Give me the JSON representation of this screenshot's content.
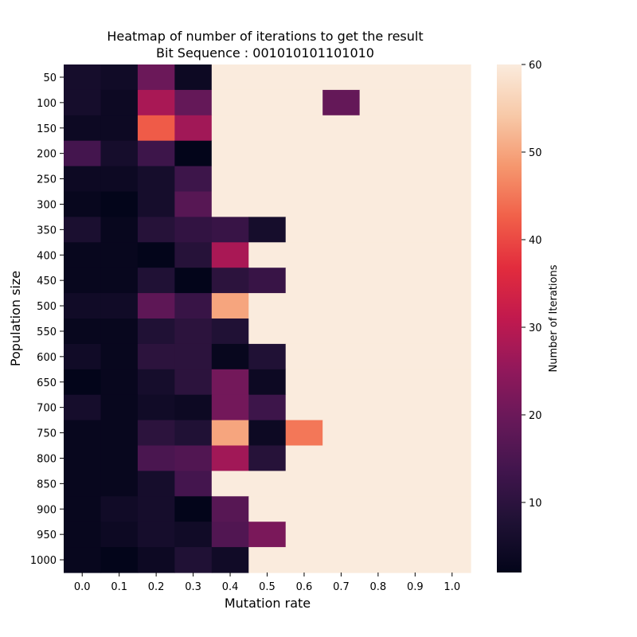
{
  "chart_data": {
    "type": "heatmap",
    "title_line1": "Heatmap of number of iterations to get the result",
    "title_line2": "Bit Sequence : 001010101101010",
    "xlabel": "Mutation rate",
    "ylabel": "Population size",
    "colorbar_label": "Number of Iterations",
    "x_categories": [
      "0.0",
      "0.1",
      "0.2",
      "0.3",
      "0.4",
      "0.5",
      "0.6",
      "0.7",
      "0.8",
      "0.9",
      "1.0"
    ],
    "y_categories": [
      "50",
      "100",
      "150",
      "200",
      "250",
      "300",
      "350",
      "400",
      "450",
      "500",
      "550",
      "600",
      "650",
      "700",
      "750",
      "800",
      "850",
      "900",
      "950",
      "1000"
    ],
    "color_range": [
      2,
      60
    ],
    "colorbar_ticks": [
      "10",
      "20",
      "30",
      "40",
      "50",
      "60"
    ],
    "colormap": "rocket",
    "values": [
      [
        6,
        5,
        20,
        4,
        60,
        60,
        60,
        60,
        60,
        60,
        60
      ],
      [
        6,
        4,
        28,
        19,
        60,
        60,
        60,
        19,
        60,
        60,
        60
      ],
      [
        4,
        4,
        42,
        27,
        60,
        60,
        60,
        60,
        60,
        60,
        60
      ],
      [
        14,
        6,
        13,
        2,
        60,
        60,
        60,
        60,
        60,
        60,
        60
      ],
      [
        4,
        4,
        6,
        13,
        60,
        60,
        60,
        60,
        60,
        60,
        60
      ],
      [
        3,
        2,
        6,
        17,
        60,
        60,
        60,
        60,
        60,
        60,
        60
      ],
      [
        7,
        3,
        9,
        11,
        12,
        6,
        60,
        60,
        60,
        60,
        60
      ],
      [
        3,
        3,
        2,
        9,
        28,
        60,
        60,
        60,
        60,
        60,
        60
      ],
      [
        3,
        3,
        8,
        2,
        10,
        12,
        60,
        60,
        60,
        60,
        60
      ],
      [
        5,
        5,
        18,
        12,
        50,
        60,
        60,
        60,
        60,
        60,
        60
      ],
      [
        3,
        3,
        8,
        10,
        8,
        60,
        60,
        60,
        60,
        60,
        60
      ],
      [
        5,
        3,
        10,
        10,
        3,
        8,
        60,
        60,
        60,
        60,
        60
      ],
      [
        2,
        3,
        6,
        10,
        21,
        4,
        60,
        60,
        60,
        60,
        60
      ],
      [
        6,
        3,
        5,
        4,
        21,
        13,
        60,
        60,
        60,
        60,
        60
      ],
      [
        3,
        3,
        10,
        8,
        50,
        4,
        45,
        60,
        60,
        60,
        60
      ],
      [
        3,
        3,
        15,
        16,
        27,
        9,
        60,
        60,
        60,
        60,
        60
      ],
      [
        3,
        3,
        6,
        14,
        60,
        60,
        60,
        60,
        60,
        60,
        60
      ],
      [
        3,
        5,
        6,
        2,
        17,
        60,
        60,
        60,
        60,
        60,
        60
      ],
      [
        3,
        4,
        6,
        5,
        16,
        22,
        60,
        60,
        60,
        60,
        60
      ],
      [
        3,
        2,
        4,
        8,
        5,
        60,
        60,
        60,
        60,
        60,
        60
      ]
    ]
  }
}
